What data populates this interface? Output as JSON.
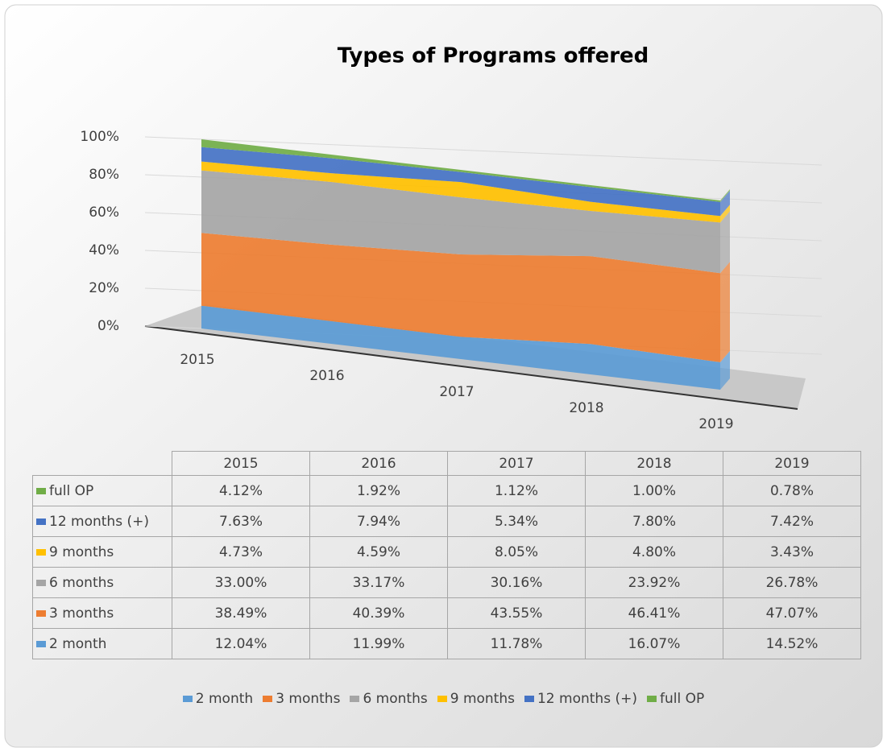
{
  "chart_data": {
    "type": "area",
    "stacked": true,
    "title": "Types of Programs offered",
    "categories": [
      "2015",
      "2016",
      "2017",
      "2018",
      "2019"
    ],
    "series": [
      {
        "name": "2 month",
        "color": "#5b9bd5",
        "values": [
          12.04,
          11.99,
          11.78,
          16.07,
          14.52
        ],
        "value_labels": [
          "12.04%",
          "11.99%",
          "11.78%",
          "16.07%",
          "14.52%"
        ]
      },
      {
        "name": "3 months",
        "color": "#ed7d31",
        "values": [
          38.49,
          40.39,
          43.55,
          46.41,
          47.07
        ],
        "value_labels": [
          "38.49%",
          "40.39%",
          "43.55%",
          "46.41%",
          "47.07%"
        ]
      },
      {
        "name": "6 months",
        "color": "#a5a5a5",
        "values": [
          33.0,
          33.17,
          30.16,
          23.92,
          26.78
        ],
        "value_labels": [
          "33.00%",
          "33.17%",
          "30.16%",
          "23.92%",
          "26.78%"
        ]
      },
      {
        "name": "9 months",
        "color": "#ffc000",
        "values": [
          4.73,
          4.59,
          8.05,
          4.8,
          3.43
        ],
        "value_labels": [
          "4.73%",
          "4.59%",
          "8.05%",
          "4.80%",
          "3.43%"
        ]
      },
      {
        "name": "12 months (+)",
        "color": "#4472c4",
        "values": [
          7.63,
          7.94,
          5.34,
          7.8,
          7.42
        ],
        "value_labels": [
          "7.63%",
          "7.94%",
          "5.34%",
          "7.80%",
          "7.42%"
        ]
      },
      {
        "name": "full OP",
        "color": "#70ad47",
        "values": [
          4.12,
          1.92,
          1.12,
          1.0,
          0.78
        ],
        "value_labels": [
          "4.12%",
          "1.92%",
          "1.12%",
          "1.00%",
          "0.78%"
        ]
      }
    ],
    "ylim": [
      0,
      100
    ],
    "yticks": [
      {
        "value": 0,
        "label": "0%"
      },
      {
        "value": 20,
        "label": "20%"
      },
      {
        "value": 40,
        "label": "40%"
      },
      {
        "value": 60,
        "label": "60%"
      },
      {
        "value": 80,
        "label": "80%"
      },
      {
        "value": 100,
        "label": "100%"
      }
    ],
    "grid": true,
    "legend": "bottom",
    "data_table": true
  }
}
